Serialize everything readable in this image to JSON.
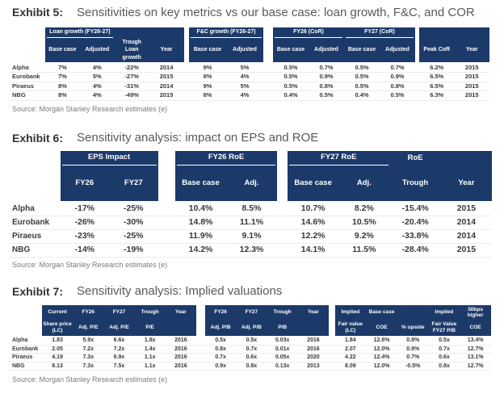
{
  "colors": {
    "header_bg": "#1c3a69",
    "header_text": "#ffffff",
    "exhibit_label": "#333333",
    "exhibit_title": "#595959",
    "source_text": "#7a7a7a",
    "data_text": "#383838"
  },
  "exhibits": [
    {
      "label": "Exhibit 5:",
      "title": "Sensitivities on key metrics vs our base case: loan growth, F&C, and COR",
      "source": "Source: Morgan Stanley Research estimates (e)",
      "row_labels": [
        "Alpha",
        "Eurobank",
        "Piraeus",
        "NBG"
      ],
      "blocks": [
        {
          "spans": [
            {
              "label": "Loan growth (FY26-27)",
              "cols": 2,
              "underline": true
            }
          ],
          "columns": [
            "Base case",
            "Adjusted",
            "Trough\nLoan\ngrowth",
            "Year"
          ],
          "rows": [
            [
              "7%",
              "4%",
              "-22%",
              "2014"
            ],
            [
              "7%",
              "5%",
              "-27%",
              "2015"
            ],
            [
              "8%",
              "4%",
              "-31%",
              "2014"
            ],
            [
              "8%",
              "4%",
              "-49%",
              "2015"
            ]
          ]
        },
        {
          "spans": [
            {
              "label": "F&C growth (FY26-27)",
              "cols": 2,
              "underline": true
            }
          ],
          "columns": [
            "Base case",
            "Adjusted"
          ],
          "rows": [
            [
              "9%",
              "5%"
            ],
            [
              "8%",
              "4%"
            ],
            [
              "9%",
              "5%"
            ],
            [
              "8%",
              "4%"
            ]
          ]
        },
        {
          "spans": [
            {
              "label": "FY26 (CoR)",
              "cols": 2,
              "underline": true
            },
            {
              "label": "FY27 (CoR)",
              "cols": 2,
              "underline": true
            }
          ],
          "columns": [
            "Base case",
            "Adjusted",
            "Base case",
            "Adjusted"
          ],
          "rows": [
            [
              "0.5%",
              "0.7%",
              "0.5%",
              "0.7%"
            ],
            [
              "0.5%",
              "0.9%",
              "0.5%",
              "0.9%"
            ],
            [
              "0.5%",
              "0.8%",
              "0.5%",
              "0.8%"
            ],
            [
              "0.4%",
              "0.5%",
              "0.4%",
              "0.5%"
            ]
          ]
        },
        {
          "spans": [],
          "columns": [
            "Peak CoR",
            "Year"
          ],
          "rows": [
            [
              "6.2%",
              "2015"
            ],
            [
              "6.5%",
              "2015"
            ],
            [
              "6.5%",
              "2015"
            ],
            [
              "6.3%",
              "2015"
            ]
          ]
        }
      ]
    },
    {
      "label": "Exhibit 6:",
      "title": "Sensitivity analysis: impact on EPS and ROE",
      "source": "Source: Morgan Stanley Research estimates (e)",
      "row_labels": [
        "Alpha",
        "Eurobank",
        "Piraeus",
        "NBG"
      ],
      "blocks": [
        {
          "spans": [
            {
              "label": "EPS Impact",
              "cols": 2,
              "underline": true
            }
          ],
          "columns": [
            "FY26",
            "FY27"
          ],
          "rows": [
            [
              "-17%",
              "-25%"
            ],
            [
              "-26%",
              "-30%"
            ],
            [
              "-23%",
              "-25%"
            ],
            [
              "-14%",
              "-19%"
            ]
          ]
        },
        {
          "spans": [
            {
              "label": "FY26 RoE",
              "cols": 2,
              "underline": true
            }
          ],
          "columns": [
            "Base case",
            "Adj."
          ],
          "rows": [
            [
              "10.4%",
              "8.5%"
            ],
            [
              "14.8%",
              "11.1%"
            ],
            [
              "11.9%",
              "9.1%"
            ],
            [
              "14.2%",
              "12.3%"
            ]
          ]
        },
        {
          "spans": [
            {
              "label": "FY27 RoE",
              "cols": 2,
              "underline": true
            },
            {
              "label": "RoE",
              "cols": 1,
              "underline": false
            }
          ],
          "columns": [
            "Base case",
            "Adj.",
            "Trough",
            "Year"
          ],
          "rows": [
            [
              "10.7%",
              "8.2%",
              "-15.4%",
              "2015"
            ],
            [
              "14.6%",
              "10.5%",
              "-20.4%",
              "2014"
            ],
            [
              "12.2%",
              "9.2%",
              "-33.8%",
              "2014"
            ],
            [
              "14.1%",
              "11.5%",
              "-28.4%",
              "2015"
            ]
          ]
        }
      ]
    },
    {
      "label": "Exhibit 7:",
      "title": "Sensitivity analysis: Implied valuations",
      "source": "Source: Morgan Stanley Research estimates (e)",
      "row_labels": [
        "Alpha",
        "Eurobank",
        "Piraeus",
        "NBG"
      ],
      "blocks": [
        {
          "spans": [
            {
              "label": "Current",
              "cols": 1,
              "underline": false
            },
            {
              "label": "FY26",
              "cols": 1,
              "underline": false
            },
            {
              "label": "FY27",
              "cols": 1,
              "underline": false
            },
            {
              "label": "Trough",
              "cols": 1,
              "underline": false
            },
            {
              "label": "Year",
              "cols": 1,
              "underline": false
            }
          ],
          "columns": [
            "Share price\n(LC)",
            "Adj. P/E",
            "Adj. P/E",
            "P/E",
            ""
          ],
          "rows": [
            [
              "1.83",
              "5.9x",
              "6.6x",
              "1.8x",
              "2016"
            ],
            [
              "2.05",
              "7.2x",
              "7.2x",
              "1.4x",
              "2016"
            ],
            [
              "4.19",
              "7.3x",
              "6.9x",
              "1.1x",
              "2016"
            ],
            [
              "8.13",
              "7.3x",
              "7.5x",
              "1.1x",
              "2016"
            ]
          ]
        },
        {
          "spans": [
            {
              "label": "FY26",
              "cols": 1,
              "underline": false
            },
            {
              "label": "FY27",
              "cols": 1,
              "underline": false
            },
            {
              "label": "Trough",
              "cols": 1,
              "underline": false
            },
            {
              "label": "Year",
              "cols": 1,
              "underline": false
            }
          ],
          "columns": [
            "Adj. P/B",
            "Adj. P/B",
            "P/B",
            ""
          ],
          "rows": [
            [
              "0.5x",
              "0.5x",
              "0.03x",
              "2016"
            ],
            [
              "0.8x",
              "0.7x",
              "0.01x",
              "2016"
            ],
            [
              "0.7x",
              "0.6x",
              "0.05x",
              "2020"
            ],
            [
              "0.9x",
              "0.8x",
              "0.13x",
              "2013"
            ]
          ]
        },
        {
          "spans": [
            {
              "label": "Implied",
              "cols": 1,
              "underline": false
            },
            {
              "label": "Base case",
              "cols": 1,
              "underline": false
            },
            {
              "label": "",
              "cols": 1,
              "underline": false
            },
            {
              "label": "Implied",
              "cols": 1,
              "underline": false
            },
            {
              "label": "50bps\nhigher",
              "cols": 1,
              "underline": false
            }
          ],
          "columns": [
            "Fair value\n(LC)",
            "COE",
            "% upside",
            "Fair Value\nFY27 P/B",
            "COE"
          ],
          "rows": [
            [
              "1.84",
              "12.6%",
              "0.8%",
              "0.5x",
              "13.4%"
            ],
            [
              "2.07",
              "12.0%",
              "0.9%",
              "0.7x",
              "12.7%"
            ],
            [
              "4.22",
              "12.4%",
              "0.7%",
              "0.6x",
              "13.1%"
            ],
            [
              "8.09",
              "12.0%",
              "-0.5%",
              "0.8x",
              "12.7%"
            ]
          ]
        }
      ]
    }
  ]
}
